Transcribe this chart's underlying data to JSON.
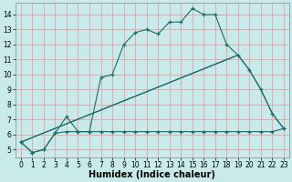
{
  "xlabel": "Humidex (Indice chaleur)",
  "xlim": [
    -0.5,
    23.5
  ],
  "ylim": [
    4.5,
    14.8
  ],
  "yticks": [
    5,
    6,
    7,
    8,
    9,
    10,
    11,
    12,
    13,
    14
  ],
  "xticks": [
    0,
    1,
    2,
    3,
    4,
    5,
    6,
    7,
    8,
    9,
    10,
    11,
    12,
    13,
    14,
    15,
    16,
    17,
    18,
    19,
    20,
    21,
    22,
    23
  ],
  "bg_color": "#c8eaea",
  "grid_color": "#e8a0a0",
  "line_color": "#1a6b6b",
  "series1_x": [
    0,
    1,
    2,
    3,
    4,
    5,
    6,
    7,
    8,
    9,
    10,
    11,
    12,
    13,
    14,
    15,
    16,
    17,
    18,
    19,
    20,
    21,
    22,
    23
  ],
  "series1_y": [
    5.5,
    4.8,
    5.0,
    6.1,
    7.2,
    6.2,
    6.2,
    9.8,
    10.0,
    12.0,
    12.8,
    13.0,
    12.7,
    13.5,
    13.5,
    14.4,
    14.0,
    14.0,
    12.0,
    11.3,
    10.3,
    9.0,
    7.4,
    6.4
  ],
  "series2_x": [
    0,
    1,
    2,
    3,
    4,
    5,
    6,
    7,
    8,
    9,
    10,
    11,
    12,
    13,
    14,
    15,
    16,
    17,
    18,
    19,
    20,
    21,
    22,
    23
  ],
  "series2_y": [
    5.5,
    4.8,
    5.0,
    6.1,
    6.2,
    6.2,
    6.2,
    6.2,
    6.2,
    6.2,
    6.2,
    6.2,
    6.2,
    6.2,
    6.2,
    6.2,
    6.2,
    6.2,
    6.2,
    6.2,
    6.2,
    6.2,
    6.2,
    6.4
  ],
  "series3_x": [
    0,
    19,
    20,
    21,
    22,
    23
  ],
  "series3_y": [
    5.5,
    11.3,
    10.3,
    9.0,
    7.4,
    6.4
  ],
  "xlabel_fontsize": 7,
  "tick_fontsize": 5.5
}
